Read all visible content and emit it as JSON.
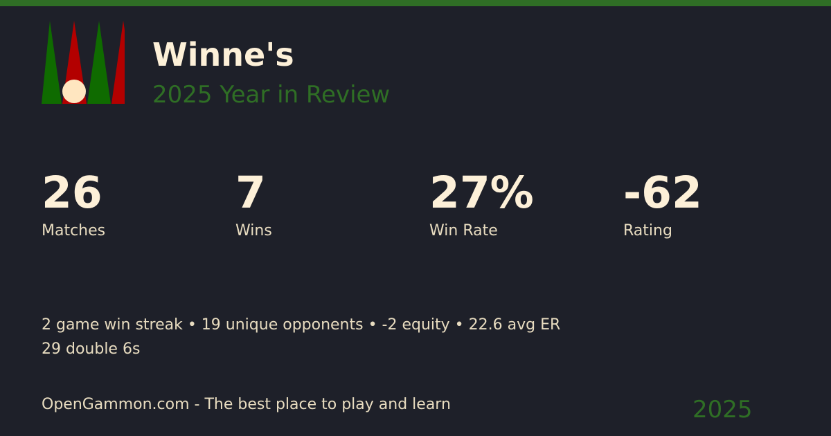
{
  "header": {
    "title": "Winne's",
    "subtitle": "2025 Year in Review"
  },
  "colors": {
    "accent": "#2f6e25",
    "background": "#1e2029",
    "logo_green": "#0f6b00",
    "logo_red": "#b30000",
    "checker": "#ffe6c0"
  },
  "stats": [
    {
      "value": "26",
      "label": "Matches"
    },
    {
      "value": "7",
      "label": "Wins"
    },
    {
      "value": "27%",
      "label": "Win Rate"
    },
    {
      "value": "-62",
      "label": "Rating"
    }
  ],
  "facts": {
    "line1": "2 game win streak • 19 unique opponents • -2 equity • 22.6 avg ER",
    "line2": "29 double 6s"
  },
  "footer": {
    "tagline": "OpenGammon.com - The best place to play and learn",
    "year": "2025"
  }
}
